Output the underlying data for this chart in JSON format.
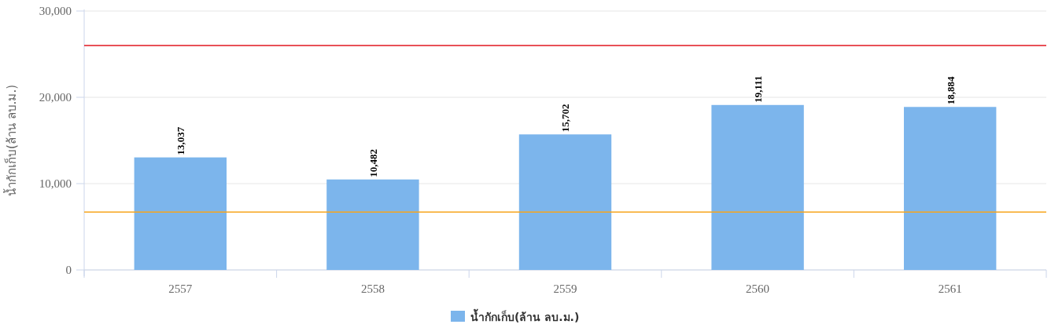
{
  "chart_data": {
    "type": "bar",
    "ylabel": "น้ำกักเก็บ(ล้าน ลบ.ม.)",
    "categories": [
      "2557",
      "2558",
      "2559",
      "2560",
      "2561"
    ],
    "series": [
      {
        "name": "น้ำกักเก็บ(ล้าน ลบ.ม.)",
        "color": "#7cb5ec",
        "values": [
          13037,
          10482,
          15702,
          19111,
          18884
        ],
        "value_labels": [
          "13,037",
          "10,482",
          "15,702",
          "19,111",
          "18,884"
        ]
      }
    ],
    "ylim": [
      0,
      30000
    ],
    "yticks": [
      {
        "value": 0,
        "label": "0"
      },
      {
        "value": 10000,
        "label": "10,000"
      },
      {
        "value": 20000,
        "label": "20,000"
      },
      {
        "value": 30000,
        "label": "30,000"
      }
    ],
    "ref_lines": [
      {
        "axis": "y",
        "value": 26000,
        "color": "#e0161f"
      },
      {
        "axis": "y",
        "value": 6700,
        "color": "#f7a51c"
      }
    ],
    "grid": "y",
    "legend": "bottom"
  }
}
